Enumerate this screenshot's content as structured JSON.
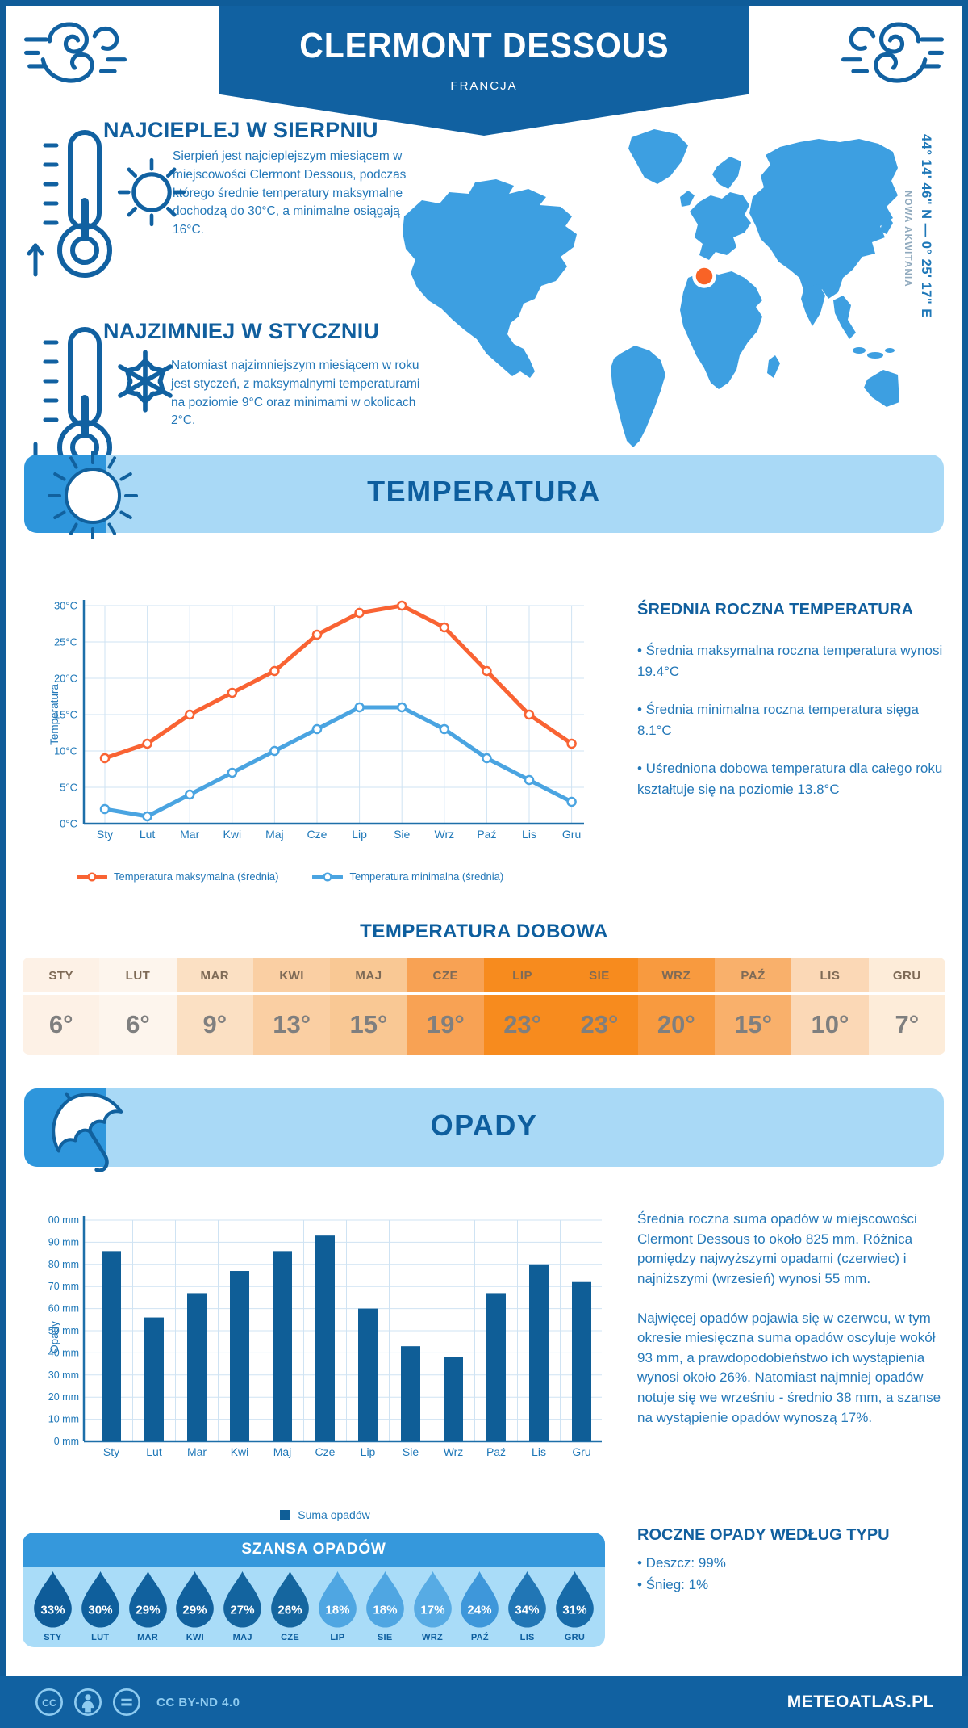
{
  "header": {
    "title": "CLERMONT DESSOUS",
    "subtitle": "FRANCJA"
  },
  "location": {
    "coordinates": "44° 14' 46\" N — 0° 25' 17\" E",
    "region": "NOWA AKWITANIA"
  },
  "highlights": [
    {
      "title": "NAJCIEPLEJ W SIERPNIU",
      "text": "Sierpień jest najcieplejszym miesiącem w miejscowości Clermont Dessous, podczas którego średnie temperatury maksymalne dochodzą do 30°C, a minimalne osiągają 16°C."
    },
    {
      "title": "NAJZIMNIEJ W STYCZNIU",
      "text": "Natomiast najzimniejszym miesiącem w roku jest styczeń, z maksymalnymi temperaturami na poziomie 9°C oraz minimami w okolicach 2°C."
    }
  ],
  "temperature": {
    "section_title": "TEMPERATURA",
    "stats_title": "ŚREDNIA ROCZNA TEMPERATURA",
    "stats": [
      "• Średnia maksymalna roczna temperatura wynosi 19.4°C",
      "• Średnia minimalna roczna temperatura sięga 8.1°C",
      "• Uśredniona dobowa temperatura dla całego roku kształtuje się na poziomie 13.8°C"
    ]
  },
  "precipitation": {
    "section_title": "OPADY",
    "paragraphs": [
      "Średnia roczna suma opadów w miejscowości Clermont Dessous to około 825 mm. Różnica pomiędzy najwyższymi opadami (czerwiec) i najniższymi (wrzesień) wynosi 55 mm.",
      "Najwięcej opadów pojawia się w czerwcu, w tym okresie miesięczna suma opadów oscyluje wokół 93 mm, a prawdopodobieństwo ich wystąpienia wynosi około 26%. Natomiast najmniej opadów notuje się we wrześniu - średnio 38 mm, a szanse na wystąpienie opadów wynoszą 17%."
    ],
    "type_title": "ROCZNE OPADY WEDŁUG TYPU",
    "types": [
      "• Deszcz: 99%",
      "• Śnieg: 1%"
    ]
  },
  "footer": {
    "license": "CC BY-ND 4.0",
    "brand": "METEOATLAS.PL"
  },
  "chart_data": [
    {
      "id": "temperatura-roczna",
      "type": "line",
      "x": [
        "Sty",
        "Lut",
        "Mar",
        "Kwi",
        "Maj",
        "Cze",
        "Lip",
        "Sie",
        "Wrz",
        "Paź",
        "Lis",
        "Gru"
      ],
      "ylabel": "Temperatura",
      "ylim": [
        0,
        30
      ],
      "ytick_step": 5,
      "ytick_suffix": "°C",
      "grid": true,
      "legend_position": "bottom",
      "series": [
        {
          "name": "Temperatura maksymalna (średnia)",
          "color": "#f96333",
          "values": [
            9,
            11,
            15,
            18,
            21,
            26,
            29,
            30,
            27,
            21,
            15,
            11
          ]
        },
        {
          "name": "Temperatura minimalna (średnia)",
          "color": "#4aa4e1",
          "values": [
            2,
            1,
            4,
            7,
            10,
            13,
            16,
            16,
            13,
            9,
            6,
            3
          ]
        }
      ]
    },
    {
      "id": "suma-opadow",
      "type": "bar",
      "x": [
        "Sty",
        "Lut",
        "Mar",
        "Kwi",
        "Maj",
        "Cze",
        "Lip",
        "Sie",
        "Wrz",
        "Paź",
        "Lis",
        "Gru"
      ],
      "ylabel": "Opady",
      "ylim": [
        0,
        100
      ],
      "ytick_step": 10,
      "ytick_suffix": " mm",
      "grid": true,
      "legend": "Suma opadów",
      "bar_color": "#0f5e97",
      "values": [
        86,
        56,
        67,
        77,
        86,
        93,
        60,
        43,
        38,
        67,
        80,
        72
      ]
    },
    {
      "id": "temperatura-dobowa",
      "type": "table",
      "title": "TEMPERATURA DOBOWA",
      "columns": [
        "STY",
        "LUT",
        "MAR",
        "KWI",
        "MAJ",
        "CZE",
        "LIP",
        "SIE",
        "WRZ",
        "PAŹ",
        "LIS",
        "GRU"
      ],
      "values": [
        "6°",
        "6°",
        "9°",
        "13°",
        "15°",
        "19°",
        "23°",
        "23°",
        "20°",
        "15°",
        "10°",
        "7°"
      ],
      "cell_colors": [
        "#fdf1e6",
        "#fdf5ed",
        "#fbe0c3",
        "#facfa3",
        "#f9c894",
        "#f8a254",
        "#f78b1e",
        "#f78b1e",
        "#f89a3f",
        "#f9b06b",
        "#fbd8b6",
        "#fdecd9"
      ],
      "header_text_color": "#7e6a56",
      "value_text_color": "#7f7f7f"
    },
    {
      "id": "szansa-opadow",
      "type": "droplets",
      "title": "SZANSA OPADÓW",
      "months": [
        "STY",
        "LUT",
        "MAR",
        "KWI",
        "MAJ",
        "CZE",
        "LIP",
        "SIE",
        "WRZ",
        "PAŹ",
        "LIS",
        "GRU"
      ],
      "values": [
        "33%",
        "30%",
        "29%",
        "29%",
        "27%",
        "26%",
        "18%",
        "18%",
        "17%",
        "24%",
        "34%",
        "31%"
      ],
      "colors": [
        "#0e5c99",
        "#0f5f9c",
        "#11619e",
        "#11619e",
        "#13649f",
        "#15669f",
        "#4fa6e2",
        "#4fa6e2",
        "#57abe4",
        "#3e97da",
        "#2176b5",
        "#176ba9"
      ]
    }
  ]
}
